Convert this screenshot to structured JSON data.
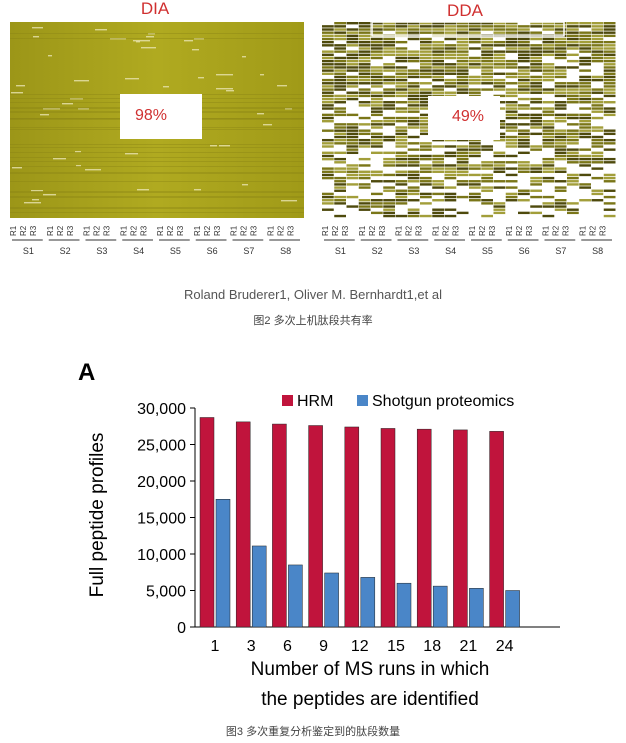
{
  "heatmaps": {
    "left_title": "DIA",
    "right_title": "DDA",
    "left_percent": "98%",
    "right_percent": "49%",
    "replicates": [
      "R1",
      "R2",
      "R3"
    ],
    "samples": [
      "S1",
      "S2",
      "S3",
      "S4",
      "S5",
      "S6",
      "S7",
      "S8"
    ],
    "colors": {
      "dia_base": "#a8a21a",
      "dda_fill": "#6e6a14",
      "title": "#d03030"
    }
  },
  "credit": "Roland Bruderer1, Oliver M. Bernhardt1,et al",
  "fig2_caption": "图2 多次上机肽段共有率",
  "fig3_caption": "图3 多次重复分析鉴定到的肽段数量",
  "chart": {
    "panel_label": "A",
    "ylabel": "Full peptide profiles",
    "xlabel_line1": "Number of MS runs in which",
    "xlabel_line2": "the peptides are identified",
    "legend_hrm": "HRM",
    "legend_shotgun": "Shotgun proteomics"
  },
  "chart_data": {
    "type": "bar",
    "categories": [
      "1",
      "3",
      "6",
      "9",
      "12",
      "15",
      "18",
      "21",
      "24"
    ],
    "series": [
      {
        "name": "HRM",
        "color": "#c0143c",
        "values": [
          28700,
          28100,
          27800,
          27600,
          27400,
          27200,
          27100,
          27000,
          26800
        ]
      },
      {
        "name": "Shotgun proteomics",
        "color": "#4a86c8",
        "values": [
          17500,
          11100,
          8500,
          7400,
          6800,
          6000,
          5600,
          5300,
          5000
        ]
      }
    ],
    "yticks": [
      "0",
      "5,000",
      "10,000",
      "15,000",
      "20,000",
      "25,000",
      "30,000"
    ],
    "ylim": [
      0,
      30000
    ],
    "legend": "top-right",
    "grid": false
  }
}
